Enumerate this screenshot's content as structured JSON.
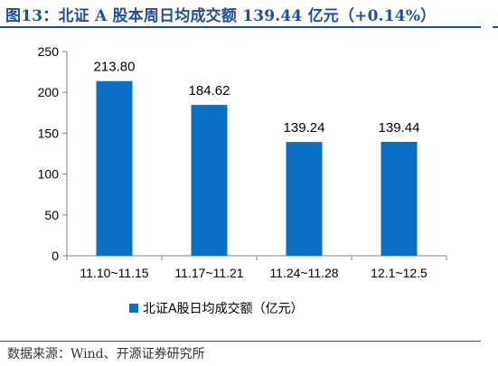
{
  "figure": {
    "title": "图13：北证 A 股本周日均成交额 139.44 亿元（+0.14%）",
    "source": "数据来源：Wind、开源证券研究所"
  },
  "chart_data": {
    "type": "bar",
    "categories": [
      "11.10~11.15",
      "11.17~11.21",
      "11.24~11.28",
      "12.1~12.5"
    ],
    "series": [
      {
        "name": "北证A股日均成交额（亿元）",
        "values": [
          213.8,
          184.62,
          139.24,
          139.44
        ],
        "labels": [
          "213.80",
          "184.62",
          "139.24",
          "139.44"
        ],
        "color": "#0b6fc4"
      }
    ],
    "ylim": [
      0,
      250
    ],
    "yticks": [
      0,
      50,
      100,
      150,
      200,
      250
    ],
    "grid": false,
    "legend": "bottom"
  }
}
